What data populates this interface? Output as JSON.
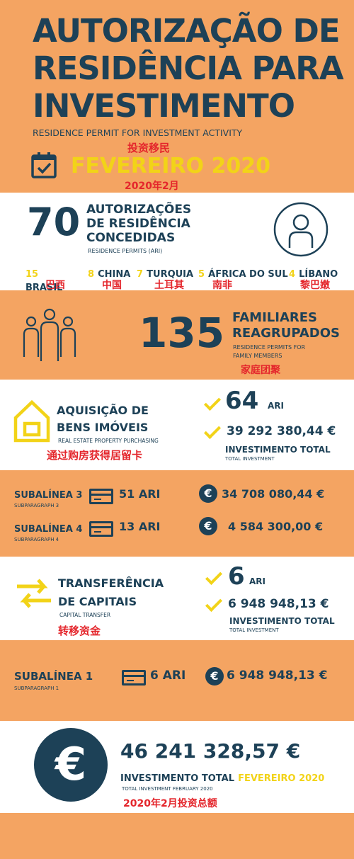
{
  "header": {
    "title_line1": "AUTORIZAÇÃO DE",
    "title_line2": "RESIDÊNCIA PARA",
    "title_line3": "INVESTIMENTO",
    "subtitle_en": "RESIDENCE PERMIT FOR INVESTMENT ACTIVITY",
    "subtitle_cn": "投资移民",
    "month": "FEVEREIRO 2020",
    "month_cn": "2020年2月"
  },
  "permits": {
    "count": "70",
    "label_line1": "AUTORIZAÇÕES",
    "label_line2": "DE RESIDÊNCIA",
    "label_line3": "CONCEDIDAS",
    "label_en": "RESIDENCE PERMITS (ARI)",
    "countries": [
      {
        "num": "15",
        "name": "BRASIL",
        "cn": "巴西"
      },
      {
        "num": "8",
        "name": "CHINA",
        "cn": "中国"
      },
      {
        "num": "7",
        "name": "TURQUIA",
        "cn": "土耳其"
      },
      {
        "num": "5",
        "name": "ÁFRICA DO SUL",
        "cn": "南非"
      },
      {
        "num": "4",
        "name": "LÍBANO",
        "cn": "黎巴嫩"
      }
    ]
  },
  "family": {
    "count": "135",
    "label_line1": "FAMILIARES",
    "label_line2": "REAGRUPADOS",
    "label_en_line1": "RESIDENCE PERMITS FOR",
    "label_en_line2": "FAMILY MEMBERS",
    "label_cn": "家庭团聚"
  },
  "real_estate": {
    "title_line1": "AQUISIÇÃO DE",
    "title_line2": "BENS IMÓVEIS",
    "title_en": "REAL ESTATE PROPERTY PURCHASING",
    "title_cn": "通过购房获得居留卡",
    "ari_count": "64",
    "ari_label": "ARI",
    "amount": "39 292 380,44 €",
    "total_label": "INVESTIMENTO TOTAL",
    "total_en": "TOTAL INVESTMENT"
  },
  "subparagraphs_re": [
    {
      "label": "SUBALÍNEA 3",
      "en": "SUBPARAGRAPH 3",
      "ari": "51 ARI",
      "euro": "€",
      "amount": "34 708 080,44 €"
    },
    {
      "label": "SUBALÍNEA 4",
      "en": "SUBPARAGRAPH 4",
      "ari": "13 ARI",
      "euro": "€",
      "amount": "4 584 300,00 €"
    }
  ],
  "capital": {
    "title_line1": "TRANSFERÊNCIA",
    "title_line2": "DE CAPITAIS",
    "title_en": "CAPITAL TRANSFER",
    "title_cn": "转移资金",
    "ari_count": "6",
    "ari_label": "ARI",
    "amount": "6 948 948,13 €",
    "total_label": "INVESTIMENTO TOTAL",
    "total_en": "TOTAL INVESTMENT"
  },
  "subparagraph_cap": {
    "label": "SUBALÍNEA 1",
    "en": "SUBPARAGRAPH 1",
    "ari": "6 ARI",
    "euro": "€",
    "amount": "6 948 948,13 €"
  },
  "footer": {
    "euro": "€",
    "amount": "46 241 328,57 €",
    "total_label": "INVESTIMENTO TOTAL",
    "month": "FEVEREIRO 2020",
    "total_en": "TOTAL INVESTMENT FEBRUARY 2020",
    "total_cn": "2020年2月投资总额"
  },
  "colors": {
    "navy": "#1d4157",
    "orange": "#f4a462",
    "yellow": "#f2d318",
    "red": "#e4262c"
  }
}
